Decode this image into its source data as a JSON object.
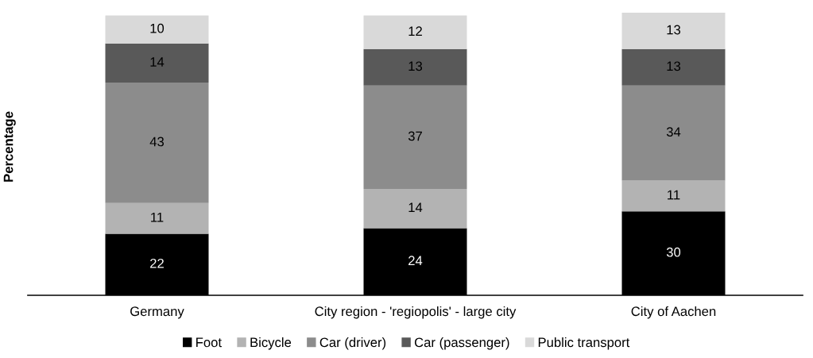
{
  "chart_data": {
    "type": "bar",
    "ylabel": "Percentage",
    "stacked": true,
    "data_labels": true,
    "legend": "bottom",
    "grid": false,
    "tick_labels": "x",
    "categories": [
      "Germany",
      "City region - 'regiopolis' - large city",
      "City of Aachen"
    ],
    "series": [
      {
        "name": "Foot",
        "color": "#000000",
        "values": [
          22,
          24,
          30
        ]
      },
      {
        "name": "Bicycle",
        "color": "#b3b3b3",
        "values": [
          11,
          14,
          11
        ]
      },
      {
        "name": "Car (driver)",
        "color": "#8c8c8c",
        "values": [
          43,
          37,
          34
        ]
      },
      {
        "name": "Car (passenger)",
        "color": "#595959",
        "values": [
          14,
          13,
          13
        ]
      },
      {
        "name": "Public transport",
        "color": "#d9d9d9",
        "values": [
          10,
          12,
          13
        ]
      }
    ]
  }
}
